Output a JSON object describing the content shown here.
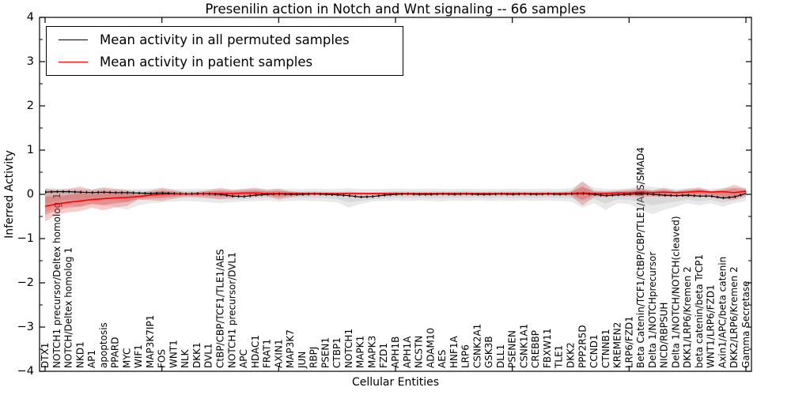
{
  "chart_data": {
    "type": "line",
    "title": "Presenilin action in Notch and Wnt signaling -- 66 samples",
    "xlabel": "Cellular Entities",
    "ylabel": "Inferred Activity",
    "ylim": [
      -4,
      4
    ],
    "yticks": [
      4,
      3,
      2,
      1,
      0,
      -1,
      -2,
      -3,
      -4
    ],
    "ytick_minor_step": 0.5,
    "xtick_major_step": 10,
    "grid": false,
    "legend_position": "upper left",
    "legend": [
      {
        "label": "Mean activity in all permuted samples",
        "color": "#000000"
      },
      {
        "label": "Mean activity in patient samples",
        "color": "#ff0000"
      }
    ],
    "categories": [
      "DTX1",
      "NOTCH1 precursor/Deltex homolog 1",
      "NOTCH/Deltex homolog 1",
      "NKD1",
      "AP1",
      "apoptosis",
      "PPARD",
      "MYC",
      "WIF1",
      "MAP3K7IP1",
      "FOS",
      "WNT1",
      "NLK",
      "DKK1",
      "DVL1",
      "CtBP/CBP/TCF1/TLE1/AES",
      "NOTCH1 precursor/DVL1",
      "APC",
      "HDAC1",
      "FRAT1",
      "AXIN1",
      "MAP3K7",
      "JUN",
      "RBPJ",
      "PSEN1",
      "CTBP1",
      "NOTCH1",
      "MAPK1",
      "MAPK3",
      "FZD1",
      "APH1B",
      "APH1A",
      "NCSTN",
      "ADAM10",
      "AES",
      "HNF1A",
      "LRP6",
      "CSNK2A1",
      "GSK3B",
      "DLL1",
      "PSENEN",
      "CSNK1A1",
      "CREBBP",
      "FBXW11",
      "TLE1",
      "DKK2",
      "PPP2R5D",
      "CCND1",
      "CTNNB1",
      "KREMEN2",
      "LRP6/FZD1",
      "Beta Catenin/TCF1/CtBP/CBP/TLE1/AES/SMAD4",
      "Delta 1/NOTCHprecursor",
      "NICD/RBPSUH",
      "Delta 1/NOTCH/NOTCH(cleaved)",
      "DKK1/LRP6/Kremen 2",
      "beta catenin/beta TrCP1",
      "WNT1/LRP6/FZD1",
      "Axin1/APC/beta catenin",
      "DKK2/LRP6/Kremen 2",
      "Gamma Secretase"
    ],
    "series": [
      {
        "name": "Mean activity in all permuted samples",
        "color": "#000000",
        "band_color": "#999999",
        "values": [
          0.05,
          0.06,
          0.06,
          0.05,
          0.04,
          0.05,
          0.04,
          0.04,
          0.03,
          0.02,
          0.03,
          0.02,
          0.01,
          0.02,
          0.01,
          0.0,
          -0.04,
          -0.05,
          -0.02,
          0.0,
          0.01,
          0.0,
          0.0,
          0.01,
          0.0,
          -0.01,
          -0.03,
          -0.06,
          -0.05,
          -0.02,
          0.0,
          0.01,
          0.0,
          0.0,
          0.01,
          0.0,
          0.01,
          0.0,
          0.0,
          0.01,
          0.0,
          0.01,
          0.0,
          0.01,
          0.0,
          0.01,
          0.02,
          0.0,
          -0.03,
          -0.01,
          0.0,
          0.02,
          0.0,
          -0.02,
          -0.03,
          -0.02,
          -0.04,
          -0.04,
          -0.08,
          -0.06,
          0.02
        ],
        "band_upper": [
          0.15,
          0.14,
          0.13,
          0.13,
          0.12,
          0.14,
          0.13,
          0.12,
          0.12,
          0.13,
          0.14,
          0.12,
          0.12,
          0.13,
          0.12,
          0.12,
          0.11,
          0.12,
          0.14,
          0.12,
          0.13,
          0.12,
          0.12,
          0.13,
          0.12,
          0.12,
          0.14,
          0.12,
          0.12,
          0.12,
          0.13,
          0.12,
          0.12,
          0.13,
          0.12,
          0.12,
          0.13,
          0.12,
          0.12,
          0.12,
          0.13,
          0.12,
          0.12,
          0.13,
          0.12,
          0.14,
          0.28,
          0.15,
          0.12,
          0.12,
          0.14,
          0.2,
          0.17,
          0.14,
          0.12,
          0.14,
          0.12,
          0.12,
          0.15,
          0.15,
          0.15
        ],
        "band_lower": [
          -0.4,
          -0.3,
          -0.25,
          -0.28,
          -0.22,
          -0.25,
          -0.28,
          -0.35,
          -0.25,
          -0.2,
          -0.18,
          -0.16,
          -0.15,
          -0.16,
          -0.18,
          -0.2,
          -0.18,
          -0.16,
          -0.15,
          -0.14,
          -0.16,
          -0.15,
          -0.14,
          -0.15,
          -0.16,
          -0.18,
          -0.3,
          -0.22,
          -0.16,
          -0.15,
          -0.14,
          -0.15,
          -0.14,
          -0.15,
          -0.16,
          -0.14,
          -0.15,
          -0.14,
          -0.15,
          -0.14,
          -0.15,
          -0.14,
          -0.15,
          -0.14,
          -0.15,
          -0.16,
          -0.3,
          -0.2,
          -0.35,
          -0.2,
          -0.22,
          -0.35,
          -0.45,
          -0.35,
          -0.28,
          -0.2,
          -0.25,
          -0.2,
          -0.28,
          -0.2,
          -0.15
        ]
      },
      {
        "name": "Mean activity in patient samples",
        "color": "#ff0000",
        "band_color": "#dd3333",
        "values": [
          -0.27,
          -0.22,
          -0.18,
          -0.15,
          -0.12,
          -0.1,
          -0.08,
          -0.07,
          -0.05,
          -0.02,
          0.0,
          0.01,
          0.01,
          0.01,
          0.02,
          0.02,
          0.02,
          0.03,
          0.03,
          0.02,
          0.02,
          0.02,
          0.02,
          0.02,
          0.02,
          0.02,
          0.02,
          0.02,
          0.02,
          0.02,
          0.02,
          0.02,
          0.02,
          0.02,
          0.02,
          0.02,
          0.02,
          0.02,
          0.02,
          0.02,
          0.02,
          0.02,
          0.02,
          0.02,
          0.02,
          0.02,
          0.03,
          0.02,
          0.02,
          0.03,
          0.03,
          0.05,
          0.04,
          0.05,
          0.04,
          0.05,
          0.07,
          0.05,
          0.06,
          0.04,
          0.07
        ],
        "band_upper": [
          0.13,
          0.1,
          0.12,
          0.18,
          0.1,
          0.16,
          0.12,
          0.1,
          0.03,
          0.08,
          0.15,
          0.1,
          0.04,
          0.05,
          0.1,
          0.15,
          0.1,
          0.12,
          0.15,
          0.1,
          0.13,
          0.07,
          0.05,
          0.05,
          0.04,
          0.04,
          0.05,
          0.04,
          0.04,
          0.04,
          0.05,
          0.04,
          0.04,
          0.04,
          0.04,
          0.05,
          0.04,
          0.04,
          0.04,
          0.04,
          0.05,
          0.04,
          0.04,
          0.04,
          0.05,
          0.06,
          0.3,
          0.08,
          0.07,
          0.09,
          0.11,
          0.14,
          0.09,
          0.15,
          0.08,
          0.12,
          0.16,
          0.08,
          0.12,
          0.22,
          0.13
        ],
        "band_lower": [
          -0.62,
          -0.46,
          -0.4,
          -0.38,
          -0.3,
          -0.36,
          -0.3,
          -0.26,
          -0.12,
          -0.13,
          -0.15,
          -0.1,
          -0.05,
          -0.06,
          -0.08,
          -0.11,
          -0.08,
          -0.05,
          -0.05,
          -0.04,
          -0.12,
          -0.06,
          -0.03,
          -0.02,
          -0.02,
          -0.02,
          -0.02,
          -0.02,
          -0.02,
          -0.02,
          -0.02,
          -0.02,
          -0.02,
          -0.02,
          -0.02,
          -0.02,
          -0.02,
          -0.02,
          -0.02,
          -0.02,
          -0.02,
          -0.02,
          -0.02,
          -0.02,
          -0.02,
          -0.03,
          -0.25,
          -0.06,
          -0.06,
          -0.04,
          -0.05,
          -0.06,
          -0.05,
          -0.06,
          -0.05,
          -0.07,
          -0.05,
          -0.06,
          -0.11,
          -0.12,
          -0.04
        ]
      }
    ]
  }
}
